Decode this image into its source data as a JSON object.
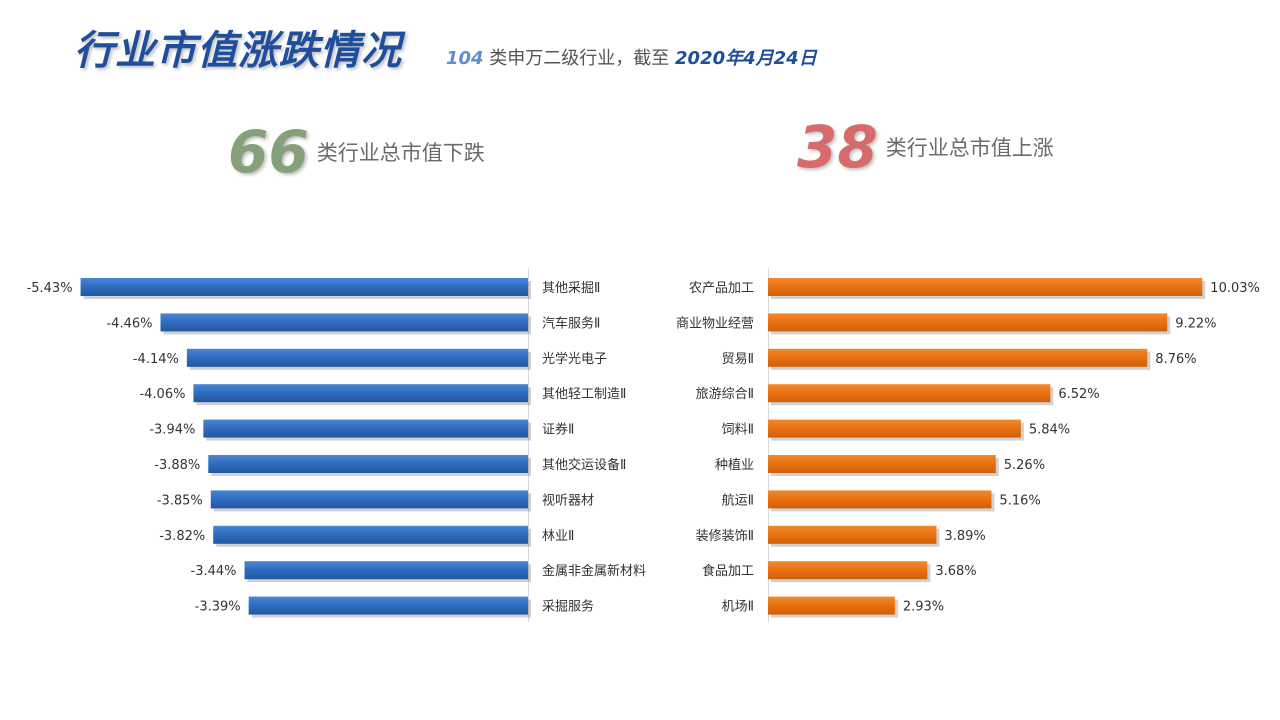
{
  "header": {
    "title": "行业市值涨跌情况",
    "subtitle_count": "104",
    "subtitle_text": " 类申万二级行业，截至 ",
    "subtitle_date": "2020年4月24日"
  },
  "stats": {
    "down_count": "66",
    "down_text": "类行业总市值下跌",
    "up_count": "38",
    "up_text": "类行业总市值上涨"
  },
  "colors": {
    "down_bar": "#2e6bbf",
    "up_bar": "#e8700f",
    "title": "#1f4e9c"
  },
  "chart_data": [
    {
      "type": "bar",
      "orientation": "horizontal",
      "categories": [
        "其他采掘Ⅱ",
        "汽车服务Ⅱ",
        "光学光电子",
        "其他轻工制造Ⅱ",
        "证券Ⅱ",
        "其他交运设备Ⅱ",
        "视听器材",
        "林业Ⅱ",
        "金属非金属新材料",
        "采掘服务"
      ],
      "values": [
        -5.43,
        -4.46,
        -4.14,
        -4.06,
        -3.94,
        -3.88,
        -3.85,
        -3.82,
        -3.44,
        -3.39
      ],
      "labels": [
        "-5.43%",
        "-4.46%",
        "-4.14%",
        "-4.06%",
        "-3.94%",
        "-3.88%",
        "-3.85%",
        "-3.82%",
        "-3.44%",
        "-3.39%"
      ]
    },
    {
      "type": "bar",
      "orientation": "horizontal",
      "categories": [
        "农产品加工",
        "商业物业经营",
        "贸易Ⅱ",
        "旅游综合Ⅱ",
        "饲料Ⅱ",
        "种植业",
        "航运Ⅱ",
        "装修装饰Ⅱ",
        "食品加工",
        "机场Ⅱ"
      ],
      "values": [
        10.03,
        9.22,
        8.76,
        6.52,
        5.84,
        5.26,
        5.16,
        3.89,
        3.68,
        2.93
      ],
      "labels": [
        "10.03%",
        "9.22%",
        "8.76%",
        "6.52%",
        "5.84%",
        "5.26%",
        "5.16%",
        "3.89%",
        "3.68%",
        "2.93%"
      ]
    }
  ]
}
